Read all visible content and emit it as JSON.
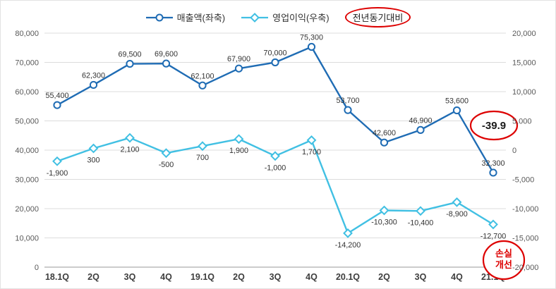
{
  "chart_data": {
    "type": "line",
    "title": "",
    "categories": [
      "18.1Q",
      "2Q",
      "3Q",
      "4Q",
      "19.1Q",
      "2Q",
      "3Q",
      "4Q",
      "20.1Q",
      "2Q",
      "3Q",
      "4Q",
      "21.1Q"
    ],
    "series": [
      {
        "name": "매출액(좌축)",
        "axis": "left",
        "marker": "circle",
        "color": "#1f6cb4",
        "values": [
          55400,
          62300,
          69500,
          69600,
          62100,
          67900,
          70000,
          75300,
          53700,
          42600,
          46900,
          53600,
          32300
        ],
        "labels": [
          "55,400",
          "62,300",
          "69,500",
          "69,600",
          "62,100",
          "67,900",
          "70,000",
          "75,300",
          "53,700",
          "42,600",
          "46,900",
          "53,600",
          "32,300"
        ]
      },
      {
        "name": "영업이익(우축)",
        "axis": "right",
        "marker": "diamond",
        "color": "#41c0e3",
        "values": [
          -1900,
          300,
          2100,
          -500,
          700,
          1900,
          -1000,
          1700,
          -14200,
          -10300,
          -10400,
          -8900,
          -12700
        ],
        "labels": [
          "-1,900",
          "300",
          "2,100",
          "-500",
          "700",
          "1,900",
          "-1,000",
          "1,700",
          "-14,200",
          "-10,300",
          "-10,400",
          "-8,900",
          "-12,700"
        ]
      }
    ],
    "left_axis": {
      "min": 0,
      "max": 80000,
      "step": 10000,
      "ticks": [
        "0",
        "10,000",
        "20,000",
        "30,000",
        "40,000",
        "50,000",
        "60,000",
        "70,000",
        "80,000"
      ]
    },
    "right_axis": {
      "min": -20000,
      "max": 20000,
      "step": 5000,
      "ticks": [
        "-20,000",
        "-15,000",
        "-10,000",
        "-5,000",
        "0",
        "5,000",
        "10,000",
        "15,000",
        "20,000"
      ]
    },
    "grid": true,
    "legend_position": "top",
    "annotations": [
      {
        "id": "yoy-change",
        "text": "-39.9",
        "shape": "red-ellipse"
      },
      {
        "id": "loss-improvement",
        "text_lines": [
          "손실",
          "개선"
        ],
        "shape": "red-ellipse"
      }
    ]
  },
  "legend": {
    "revenue": "매출액(좌축)",
    "op_profit": "영업이익(우축)",
    "yoy": "전년동기대비"
  },
  "colors": {
    "revenue": "#1f6cb4",
    "op_profit": "#41c0e3",
    "annotation_red": "#dd0000",
    "grid": "#dcdcdc",
    "axis": "#9a9a9a"
  }
}
